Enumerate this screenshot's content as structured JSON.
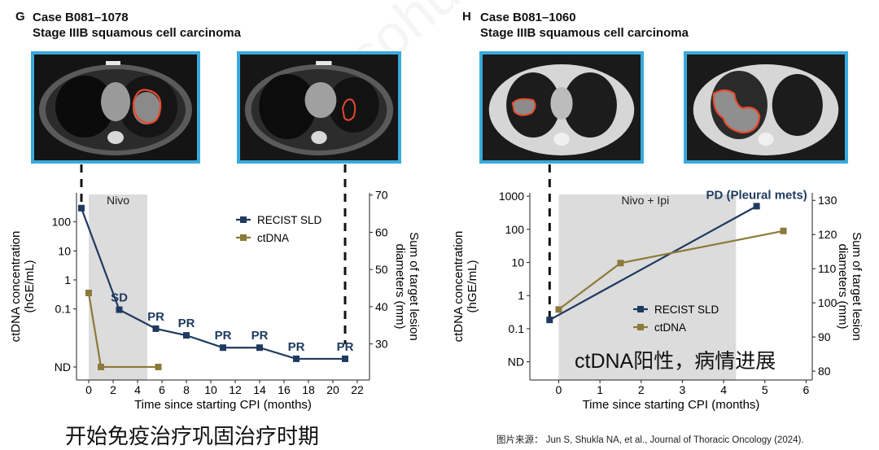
{
  "panel_g": {
    "letter": "G",
    "case": "Case B081–1078",
    "stage": "Stage IIIB squamous cell carcinoma",
    "treatment_label": "Nivo"
  },
  "panel_h": {
    "letter": "H",
    "case": "Case B081–1060",
    "stage": "Stage IIIB squamous cell carcinoma",
    "treatment_label": "Nivo + Ipi",
    "overlay_cn": "ctDNA阳性，病情进展"
  },
  "caption_cn": "开始免疫治疗巩固治疗时期",
  "source_text": "图片来源： Jun S, Shukla NA, et al., Journal of Thoracic Oncology (2024).",
  "colors": {
    "recist": "#1f3a5f",
    "ctdna": "#8c7a3a",
    "shade": "#dcdcdc",
    "frame": "#3aa9dc",
    "lesion": "#e84a2c"
  },
  "chart_data": [
    {
      "type": "line",
      "id": "G",
      "xlabel": "Time since starting CPI (months)",
      "ylabel_left": [
        "ctDNA concentration",
        "(hGE/mL)"
      ],
      "ylabel_right": [
        "Sum of target lesion",
        "diameters (mm)"
      ],
      "xlim": [
        -1,
        23
      ],
      "xticks": [
        0,
        2,
        4,
        6,
        8,
        10,
        12,
        14,
        16,
        18,
        20,
        22
      ],
      "xtick_labels": [
        "0",
        "2",
        "4",
        "6",
        "8",
        "10",
        "12",
        "14",
        "16",
        "18",
        "20",
        "22"
      ],
      "left_ticks": [
        {
          "label": "100",
          "level": 5
        },
        {
          "label": "10",
          "level": 4
        },
        {
          "label": "1",
          "level": 3
        },
        {
          "label": "0.1",
          "level": 2
        },
        {
          "label": "ND",
          "level": 0
        }
      ],
      "left_range": [
        -0.45,
        6.0
      ],
      "right_ticks": [
        30,
        40,
        50,
        60,
        70
      ],
      "right_range": [
        20.3,
        70.6
      ],
      "shade_range": [
        0,
        4.8
      ],
      "treatment_label_x": 2.4,
      "dashed_times": [
        -0.6,
        21
      ],
      "legend_position": "top-right",
      "series": [
        {
          "name": "RECIST SLD",
          "axis": "right",
          "x": [
            -0.6,
            2.5,
            5.5,
            8,
            11,
            14,
            17,
            21
          ],
          "y": [
            66.5,
            39.2,
            34.1,
            32.3,
            29.0,
            29.0,
            26.0,
            26.0
          ]
        },
        {
          "name": "ctDNA",
          "axis": "left",
          "x": [
            0,
            1,
            5.7
          ],
          "y": [
            2.55,
            0,
            0
          ]
        }
      ],
      "annotations": [
        {
          "text": "SD",
          "x": 2.5,
          "y": 39.2
        },
        {
          "text": "PR",
          "x": 5.5,
          "y": 34.1
        },
        {
          "text": "PR",
          "x": 8,
          "y": 32.3
        },
        {
          "text": "PR",
          "x": 11,
          "y": 29.0
        },
        {
          "text": "PR",
          "x": 14,
          "y": 29.0
        },
        {
          "text": "PR",
          "x": 17,
          "y": 26.0
        },
        {
          "text": "PR",
          "x": 21,
          "y": 26.0
        }
      ]
    },
    {
      "type": "line",
      "id": "H",
      "xlabel": "Time since starting CPI (months)",
      "ylabel_left": [
        "ctDNA concentration",
        "(hGE/mL)"
      ],
      "ylabel_right": [
        "Sum of target lesion",
        "diameters (mm)"
      ],
      "xlim": [
        -0.7,
        6.15
      ],
      "xticks": [
        0,
        1,
        2,
        3,
        4,
        5,
        6
      ],
      "xtick_labels": [
        "0",
        "1",
        "2",
        "3",
        "4",
        "5",
        "6"
      ],
      "left_ticks": [
        {
          "label": "1000",
          "level": 6
        },
        {
          "label": "100",
          "level": 5
        },
        {
          "label": "10",
          "level": 4
        },
        {
          "label": "1",
          "level": 3
        },
        {
          "label": "0.1",
          "level": 2
        },
        {
          "label": "ND",
          "level": 1
        }
      ],
      "left_range": [
        0.45,
        6.1
      ],
      "right_ticks": [
        80,
        90,
        100,
        110,
        120,
        130
      ],
      "right_range": [
        77.4,
        132.2
      ],
      "shade_range": [
        0,
        4.3
      ],
      "treatment_label_x": 2.1,
      "dashed_times": [
        -0.22
      ],
      "legend_position": "center-right",
      "series": [
        {
          "name": "RECIST SLD",
          "axis": "right",
          "x": [
            -0.22,
            4.8
          ],
          "y": [
            95.0,
            128.3
          ]
        },
        {
          "name": "ctDNA",
          "axis": "left",
          "x": [
            0,
            1.5,
            5.45
          ],
          "y": [
            2.58,
            3.98,
            4.95
          ]
        }
      ],
      "annotations": [
        {
          "text": "PD (Pleural mets)",
          "x": 4.8,
          "y": 128.3,
          "dy": -9,
          "anchor": "middle"
        }
      ]
    }
  ]
}
